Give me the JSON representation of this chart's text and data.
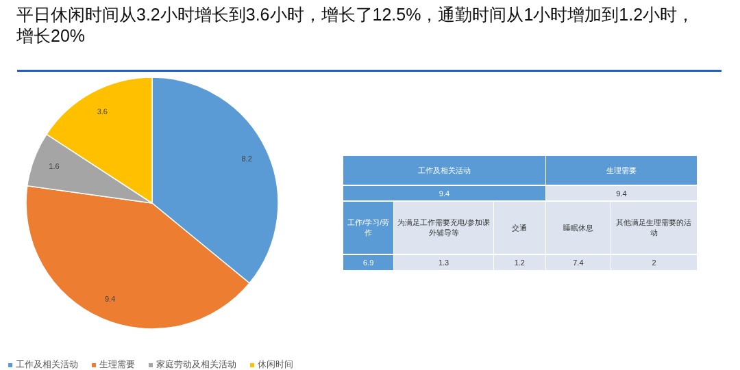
{
  "chart_data": [
    {
      "type": "pie",
      "title": "平日休闲时间从3.2小时增长到3.6小时，增长了12.5%，通勤时间从1小时增加到1.2小时，增长20%",
      "categories": [
        "工作及相关活动",
        "生理需要",
        "家庭劳动及相关活动",
        "休闲时间"
      ],
      "values": [
        8.2,
        9.4,
        1.6,
        3.6
      ],
      "colors": [
        "#5b9bd5",
        "#ed7d31",
        "#a5a5a5",
        "#ffc000"
      ],
      "data_labels": true,
      "legend": "bottom left"
    },
    {
      "type": "other",
      "annotations": [
        "工作及相关活动",
        "生理需要",
        "9.4",
        "9.4",
        "工作/学习/劳作",
        "为满足工作需要充电/参加课外辅导等",
        "交通",
        "睡眠休息",
        "其他满足生理需要的活动",
        "6.9",
        "1.3",
        "1.2",
        "7.4",
        "2"
      ]
    }
  ]
}
